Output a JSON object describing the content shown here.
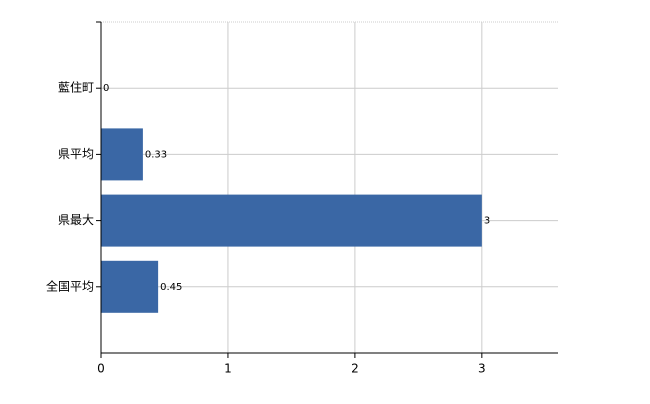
{
  "chart_data": {
    "type": "barh",
    "categories": [
      "藍住町",
      "県平均",
      "県最大",
      "全国平均"
    ],
    "values": [
      0,
      0.33,
      3,
      0.45
    ],
    "color": "#3a67a5",
    "xlim": [
      0,
      3.6
    ],
    "xticks": [
      0,
      1,
      2,
      3
    ],
    "grid": true
  }
}
